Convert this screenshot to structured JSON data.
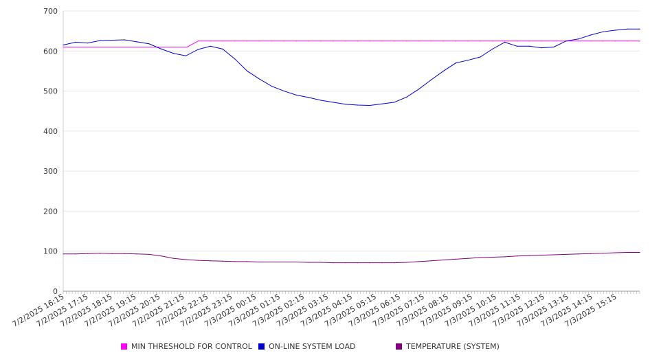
{
  "chart_data": {
    "type": "line",
    "y_ticks": [
      "0",
      "100",
      "200",
      "300",
      "400",
      "500",
      "600",
      "700"
    ],
    "ylim": [
      0,
      700
    ],
    "x_tick_labels": [
      "7/2/2025 16:15",
      "7/2/2025 17:15",
      "7/2/2025 18:15",
      "7/2/2025 19:15",
      "7/2/2025 20:15",
      "7/2/2025 21:15",
      "7/2/2025 22:15",
      "7/2/2025 23:15",
      "7/3/2025 00:15",
      "7/3/2025 01:15",
      "7/3/2025 02:15",
      "7/3/2025 03:15",
      "7/3/2025 04:15",
      "7/3/2025 05:15",
      "7/3/2025 06:15",
      "7/3/2025 07:15",
      "7/3/2025 08:15",
      "7/3/2025 09:15",
      "7/3/2025 10:15",
      "7/3/2025 11:15",
      "7/3/2025 12:15",
      "7/3/2025 13:15",
      "7/3/2025 14:15",
      "7/3/2025 15:15"
    ],
    "x": [
      "7/2/2025 16:15",
      "7/2/2025 16:45",
      "7/2/2025 17:15",
      "7/2/2025 17:45",
      "7/2/2025 18:15",
      "7/2/2025 18:45",
      "7/2/2025 19:15",
      "7/2/2025 19:45",
      "7/2/2025 20:15",
      "7/2/2025 20:45",
      "7/2/2025 21:15",
      "7/2/2025 21:45",
      "7/2/2025 22:15",
      "7/2/2025 22:45",
      "7/2/2025 23:15",
      "7/2/2025 23:45",
      "7/3/2025 00:15",
      "7/3/2025 00:45",
      "7/3/2025 01:15",
      "7/3/2025 01:45",
      "7/3/2025 02:15",
      "7/3/2025 02:45",
      "7/3/2025 03:15",
      "7/3/2025 03:45",
      "7/3/2025 04:15",
      "7/3/2025 04:45",
      "7/3/2025 05:15",
      "7/3/2025 05:45",
      "7/3/2025 06:15",
      "7/3/2025 06:45",
      "7/3/2025 07:15",
      "7/3/2025 07:45",
      "7/3/2025 08:15",
      "7/3/2025 08:45",
      "7/3/2025 09:15",
      "7/3/2025 09:45",
      "7/3/2025 10:15",
      "7/3/2025 10:45",
      "7/3/2025 11:15",
      "7/3/2025 11:45",
      "7/3/2025 12:15",
      "7/3/2025 12:45",
      "7/3/2025 13:15",
      "7/3/2025 13:45",
      "7/3/2025 14:15",
      "7/3/2025 14:45",
      "7/3/2025 15:15",
      "7/3/2025 15:45"
    ],
    "series": [
      {
        "name": "MIN THRESHOLD FOR CONTROL",
        "color": "#ff00ff",
        "values": [
          610,
          610,
          610,
          610,
          610,
          610,
          610,
          610,
          610,
          610,
          610,
          625,
          625,
          625,
          625,
          625,
          625,
          625,
          625,
          625,
          625,
          625,
          625,
          625,
          625,
          625,
          625,
          625,
          625,
          625,
          625,
          625,
          625,
          625,
          625,
          625,
          625,
          625,
          625,
          625,
          625,
          625,
          625,
          625,
          625,
          625,
          625,
          625
        ]
      },
      {
        "name": "ON-LINE SYSTEM LOAD",
        "color": "#0000cc",
        "values": [
          615,
          622,
          620,
          626,
          627,
          628,
          623,
          618,
          605,
          594,
          588,
          604,
          612,
          605,
          580,
          550,
          530,
          512,
          500,
          490,
          484,
          477,
          472,
          467,
          465,
          464,
          468,
          472,
          485,
          505,
          528,
          550,
          570,
          577,
          585,
          605,
          622,
          612,
          612,
          608,
          610,
          625,
          630,
          640,
          648,
          652,
          655,
          655
        ]
      },
      {
        "name": "TEMPERATURE (SYSTEM)",
        "color": "#800080",
        "values": [
          93,
          93,
          94,
          95,
          94,
          94,
          93,
          92,
          88,
          82,
          79,
          77,
          76,
          75,
          74,
          74,
          73,
          73,
          73,
          73,
          72,
          72,
          71,
          71,
          71,
          71,
          71,
          71,
          72,
          74,
          76,
          78,
          80,
          82,
          84,
          85,
          86,
          88,
          89,
          90,
          91,
          92,
          93,
          94,
          95,
          96,
          97,
          97
        ]
      }
    ],
    "grid": true,
    "legend_position": "bottom"
  }
}
